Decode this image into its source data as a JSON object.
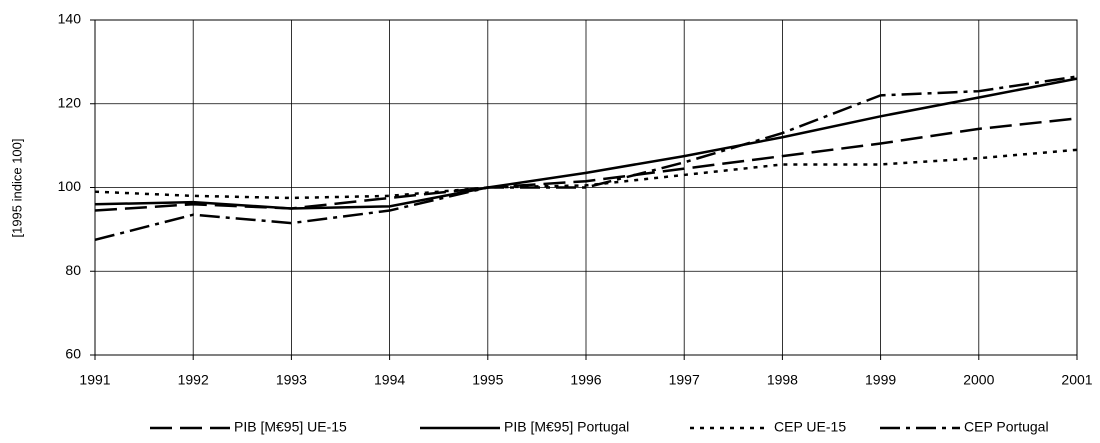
{
  "chart_data": {
    "type": "line",
    "ylabel": "[1995 indice 100]",
    "x": [
      1991,
      1992,
      1993,
      1994,
      1995,
      1996,
      1997,
      1998,
      1999,
      2000,
      2001
    ],
    "xlim": [
      1991,
      2001
    ],
    "xticks": [
      1991,
      1992,
      1993,
      1994,
      1995,
      1996,
      1997,
      1998,
      1999,
      2000,
      2001
    ],
    "ylim": [
      60,
      140
    ],
    "yticks": [
      60,
      80,
      100,
      120,
      140
    ],
    "grid": true,
    "legend": "bottom",
    "series": [
      {
        "name": "PIB [M€95] UE-15",
        "color": "#000000",
        "dash": "22,8",
        "values": [
          94.5,
          96,
          95,
          97.5,
          100,
          101.5,
          104.5,
          107.5,
          110.5,
          114,
          116.5
        ]
      },
      {
        "name": "PIB [M€95] Portugal",
        "color": "#000000",
        "dash": "none",
        "values": [
          96,
          96.5,
          95,
          95.5,
          100,
          103.5,
          107.5,
          112,
          117,
          121.5,
          126
        ]
      },
      {
        "name": "CEP UE-15",
        "color": "#000000",
        "dash": "4,6",
        "values": [
          99,
          98,
          97.5,
          98,
          100,
          100.5,
          103,
          105.5,
          105.5,
          107,
          109
        ]
      },
      {
        "name": "CEP Portugal",
        "color": "#000000",
        "dash": "20,6,4,6",
        "values": [
          87.5,
          93.5,
          91.5,
          94.5,
          100,
          100,
          106,
          113,
          122,
          123,
          126.5
        ]
      }
    ]
  }
}
